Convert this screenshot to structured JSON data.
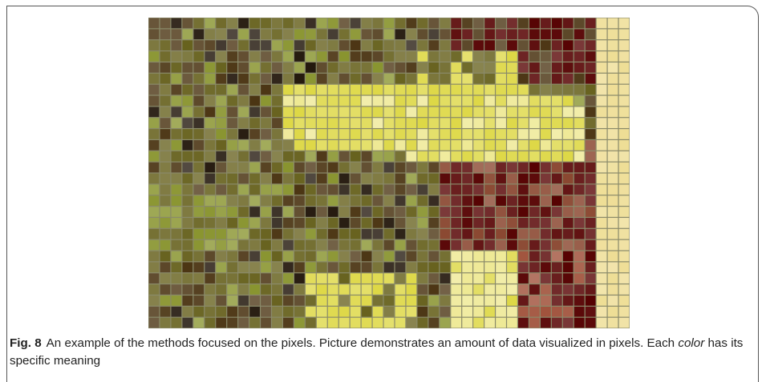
{
  "figure": {
    "caption": {
      "label": "Fig. 8",
      "text_before": "An example of the methods focused on the pixels. Picture demonstrates an amount of data visualized in pixels. Each ",
      "emphasis": "color",
      "text_after": " has its specific meaning"
    }
  }
}
